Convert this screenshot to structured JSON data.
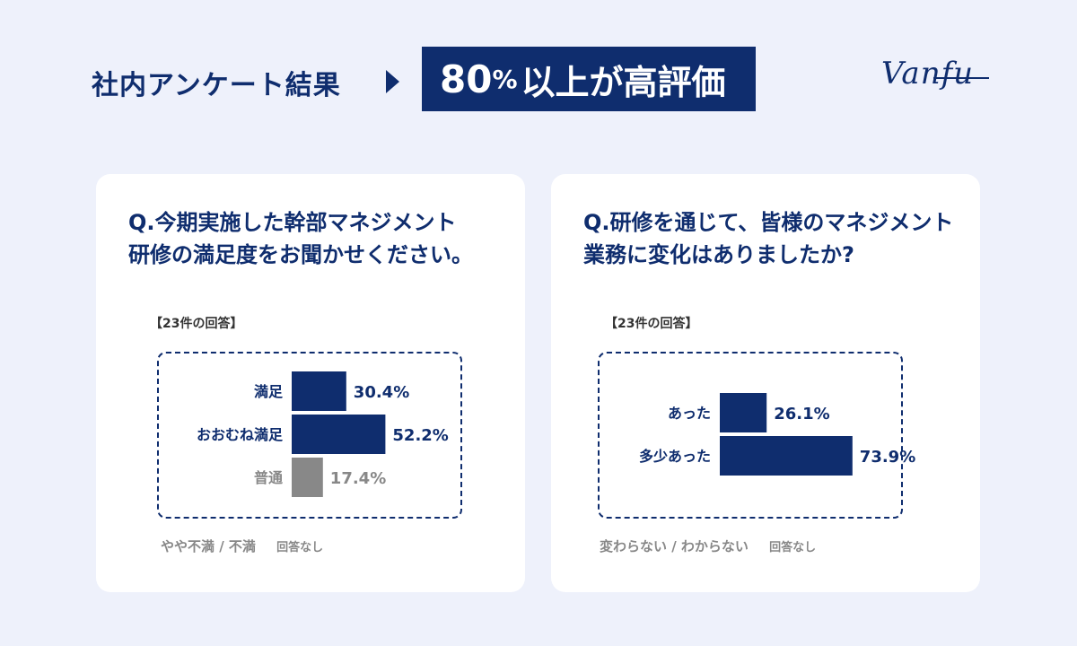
{
  "header": {
    "title": "社内アンケート結果",
    "highlight_number": "80",
    "highlight_percent": "%",
    "highlight_rest": "以上が高評価"
  },
  "logo": {
    "text": "Vanfu"
  },
  "colors": {
    "navy": "#0f2d6e",
    "gray": "#888888",
    "background": "#eef1fb"
  },
  "cards": [
    {
      "question_lines": [
        "Q.今期実施した幹部マネジメント",
        "研修の満足度をお聞かせください。"
      ],
      "count": "【23件の回答】",
      "footnote_main": "やや不満 / 不満",
      "footnote_note": "回答なし"
    },
    {
      "question_lines": [
        "Q.研修を通じて、皆様のマネジメント",
        "業務に変化はありましたか?"
      ],
      "count": "【23件の回答】",
      "footnote_main": "変わらない / わからない",
      "footnote_note": "回答なし"
    }
  ],
  "chart_data": [
    {
      "type": "bar",
      "orientation": "horizontal",
      "categories": [
        "満足",
        "おおむね満足",
        "普通"
      ],
      "values": [
        30.4,
        52.2,
        17.4
      ],
      "value_labels": [
        "30.4%",
        "52.2%",
        "17.4%"
      ],
      "colors": [
        "#0f2d6e",
        "#0f2d6e",
        "#888888"
      ],
      "xlim": [
        0,
        100
      ]
    },
    {
      "type": "bar",
      "orientation": "horizontal",
      "categories": [
        "あった",
        "多少あった"
      ],
      "values": [
        26.1,
        73.9
      ],
      "value_labels": [
        "26.1%",
        "73.9%"
      ],
      "colors": [
        "#0f2d6e",
        "#0f2d6e"
      ],
      "xlim": [
        0,
        100
      ]
    }
  ]
}
